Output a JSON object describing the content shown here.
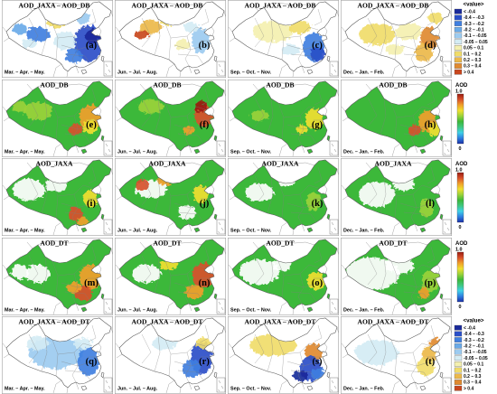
{
  "figure": {
    "seasons": [
      "Mar. – Apr. – May.",
      "Jun. – Jul. – Aug.",
      "Sep. – Oct. – Nov.",
      "Dec. – Jan. – Feb."
    ],
    "rows": [
      {
        "title": "AOD_JAXA – AOD_DB",
        "labels": [
          "(a)",
          "(b)",
          "(c)",
          "(d)"
        ]
      },
      {
        "title": "AOD_DB",
        "labels": [
          "(e)",
          "(f)",
          "(g)",
          "(h)"
        ]
      },
      {
        "title": "AOD_JAXA",
        "labels": [
          "(i)",
          "(j)",
          "(k)",
          "(l)"
        ]
      },
      {
        "title": "AOD_DT",
        "labels": [
          "(m)",
          "(n)",
          "(o)",
          "(p)"
        ]
      },
      {
        "title": "AOD_JAXA – AOD_DT",
        "labels": [
          "(q)",
          "(r)",
          "(s)",
          "(t)"
        ]
      }
    ],
    "difference_legend": {
      "title": "<value>",
      "entries": [
        {
          "label": "< -0.4",
          "color": "#1a2a9a"
        },
        {
          "label": "-0.4 – -0.3",
          "color": "#2a4fc8"
        },
        {
          "label": "-0.3 – -0.2",
          "color": "#3f7fe0"
        },
        {
          "label": "-0.2 – -0.1",
          "color": "#6aaae8"
        },
        {
          "label": "-0.1 – -0.05",
          "color": "#9ccbf0"
        },
        {
          "label": "-0.05 – 0.05",
          "color": "#d4ecf4"
        },
        {
          "label": "0.05 – 0.1",
          "color": "#f4f0b0"
        },
        {
          "label": "0.1 – 0.2",
          "color": "#f0dc6a"
        },
        {
          "label": "0.2 – 0.3",
          "color": "#ecb84a"
        },
        {
          "label": "0.3 – 0.4",
          "color": "#e08a30"
        },
        {
          "label": "> 0.4",
          "color": "#c8461e"
        }
      ]
    },
    "aod_colorbar": {
      "title": "AOD",
      "max_label": "1.0",
      "min_label": "0",
      "colors": [
        "#1a2fa8",
        "#2f7fe0",
        "#3fd0e8",
        "#40c880",
        "#3cb83a",
        "#9ad23a",
        "#f0e030",
        "#f0a02a",
        "#d8502a",
        "#9a1a10"
      ]
    },
    "map_colors": {
      "no_data": "#ffffff",
      "border": "#5e5e5e",
      "neighbor": "#a4a4a4",
      "province": "#7f7f7f",
      "frame": "#a0a0a0"
    }
  }
}
